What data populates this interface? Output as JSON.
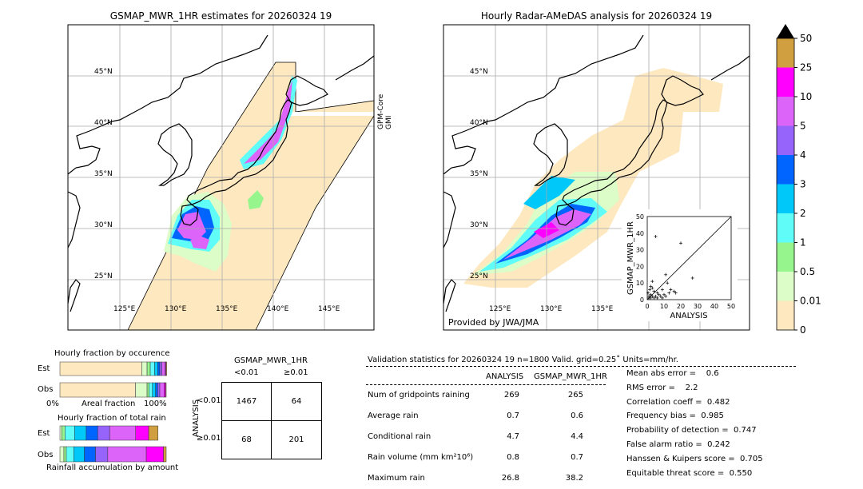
{
  "left_map": {
    "title": "GSMAP_MWR_1HR estimates for 20260324 19",
    "sensor_label": [
      "GPM-Core",
      "GMI"
    ]
  },
  "right_map": {
    "title": "Hourly Radar-AMeDAS analysis for 20260324 19",
    "credit": "Provided by JWA/JMA"
  },
  "lat_labels": [
    "45°N",
    "40°N",
    "35°N",
    "30°N",
    "25°N"
  ],
  "lon_labels": [
    "125°E",
    "130°E",
    "135°E",
    "140°E",
    "145°E"
  ],
  "colorbar": {
    "levels": [
      "0",
      "0.01",
      "0.5",
      "1",
      "2",
      "3",
      "4",
      "5",
      "10",
      "25",
      "50"
    ],
    "colors": [
      "#fee8c0",
      "#dcfcc8",
      "#96f58c",
      "#60fcf8",
      "#00c8f8",
      "#0064ff",
      "#9664fa",
      "#dc64f8",
      "#ff00ff",
      "#d0a040"
    ]
  },
  "scatter": {
    "xlabel": "ANALYSIS",
    "ylabel": "GSMAP_MWR_1HR",
    "ticks": [
      "0",
      "10",
      "20",
      "30",
      "40",
      "50"
    ],
    "points": [
      [
        5,
        38
      ],
      [
        20,
        34
      ],
      [
        27,
        13
      ],
      [
        11,
        15
      ],
      [
        12,
        10
      ],
      [
        16,
        5
      ],
      [
        17,
        4
      ],
      [
        9,
        6
      ],
      [
        3,
        11
      ],
      [
        2,
        8
      ],
      [
        4,
        5
      ],
      [
        6,
        4
      ],
      [
        1,
        2
      ],
      [
        2,
        3
      ],
      [
        3,
        2
      ],
      [
        5,
        2
      ],
      [
        7,
        3
      ],
      [
        8,
        2
      ],
      [
        4,
        1
      ],
      [
        1,
        1
      ],
      [
        2,
        1
      ],
      [
        6,
        1
      ],
      [
        10,
        3
      ],
      [
        13,
        4
      ],
      [
        0.5,
        4
      ],
      [
        1.5,
        6
      ],
      [
        3,
        7
      ],
      [
        9,
        1
      ],
      [
        11,
        2
      ],
      [
        14,
        6
      ]
    ]
  },
  "occurrence": {
    "title": "Hourly fraction by occurence",
    "est_label": "Est",
    "obs_label": "Obs",
    "axis_left": "0%",
    "axis_mid": "Areal fraction",
    "axis_right": "100%",
    "est": [
      0.77,
      0.05,
      0.03,
      0.04,
      0.03,
      0.02,
      0.02,
      0.03,
      0.0075,
      0.0075
    ],
    "obs": [
      0.71,
      0.11,
      0.02,
      0.03,
      0.03,
      0.02,
      0.02,
      0.04,
      0.015,
      0.005
    ]
  },
  "total_rain": {
    "title": "Hourly fraction of total rain",
    "est_label": "Est",
    "obs_label": "Obs",
    "footer": "Rainfall accumulation by amount",
    "est": [
      0,
      0.0175,
      0.03,
      0.09,
      0.11,
      0.1075,
      0.1125,
      0.245,
      0.1225,
      0.0875
    ],
    "obs": [
      0,
      0.0375,
      0.0225,
      0.07,
      0.1,
      0.105,
      0.115,
      0.3625,
      0.1625,
      0.025
    ]
  },
  "contingency": {
    "title": "GSMAP_MWR_1HR",
    "col1": "<0.01",
    "col2": "≥0.01",
    "row_axis": "ANALYSIS",
    "row1": "<0.01",
    "row2": "≥0.01",
    "cells": [
      "1467",
      "64",
      "68",
      "201"
    ]
  },
  "validation": {
    "header": "Validation statistics for 20260324 19  n=1800 Valid. grid=0.25˚ Units=mm/hr.",
    "col_analysis": "ANALYSIS",
    "col_gsmap": "GSMAP_MWR_1HR",
    "rows": [
      {
        "label": "Num of gridpoints raining",
        "a": "269",
        "g": "265"
      },
      {
        "label": "Average rain",
        "a": "0.7",
        "g": "0.6"
      },
      {
        "label": "Conditional rain",
        "a": "4.7",
        "g": "4.4"
      },
      {
        "label": "Rain volume (mm km²10⁶)",
        "a": "0.8",
        "g": "0.7"
      },
      {
        "label": "Maximum rain",
        "a": "26.8",
        "g": "38.2"
      }
    ],
    "scores": [
      "Mean abs error =    0.6",
      "RMS error =    2.2",
      "Correlation coeff =  0.482",
      "Frequency bias =  0.985",
      "Probability of detection =  0.747",
      "False alarm ratio =  0.242",
      "Hanssen & Kuipers score =  0.705",
      "Equitable threat score =  0.550"
    ]
  }
}
